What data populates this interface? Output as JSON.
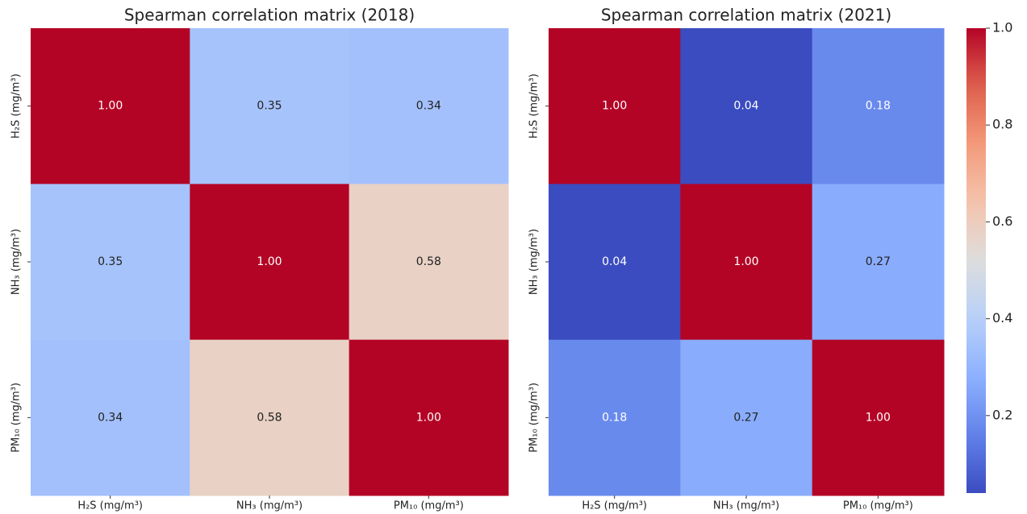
{
  "chart_data": [
    {
      "type": "heatmap",
      "title": "Spearman correlation matrix (2018)",
      "x": [
        "H₂S (mg/m³)",
        "NH₃ (mg/m³)",
        "PM₁₀ (mg/m³)"
      ],
      "y": [
        "H₂S (mg/m³)",
        "NH₃ (mg/m³)",
        "PM₁₀ (mg/m³)"
      ],
      "values": [
        [
          1.0,
          0.35,
          0.34
        ],
        [
          0.35,
          1.0,
          0.58
        ],
        [
          0.34,
          0.58,
          1.0
        ]
      ],
      "value_labels": [
        [
          "1.00",
          "0.35",
          "0.34"
        ],
        [
          "0.35",
          "1.00",
          "0.58"
        ],
        [
          "0.34",
          "0.58",
          "1.00"
        ]
      ],
      "colormap": "coolwarm",
      "zlim": [
        0.04,
        1.0
      ]
    },
    {
      "type": "heatmap",
      "title": "Spearman correlation matrix (2021)",
      "x": [
        "H₂S (mg/m³)",
        "NH₃ (mg/m³)",
        "PM₁₀ (mg/m³)"
      ],
      "y": [
        "H₂S (mg/m³)",
        "NH₃ (mg/m³)",
        "PM₁₀ (mg/m³)"
      ],
      "values": [
        [
          1.0,
          0.04,
          0.18
        ],
        [
          0.04,
          1.0,
          0.27
        ],
        [
          0.18,
          0.27,
          1.0
        ]
      ],
      "value_labels": [
        [
          "1.00",
          "0.04",
          "0.18"
        ],
        [
          "0.04",
          "1.00",
          "0.27"
        ],
        [
          "0.18",
          "0.27",
          "1.00"
        ]
      ],
      "colormap": "coolwarm",
      "zlim": [
        0.04,
        1.0
      ],
      "zticks": [
        0.2,
        0.4,
        0.6,
        0.8,
        {
          "value": 1.0,
          "label": "1.0"
        }
      ]
    }
  ]
}
